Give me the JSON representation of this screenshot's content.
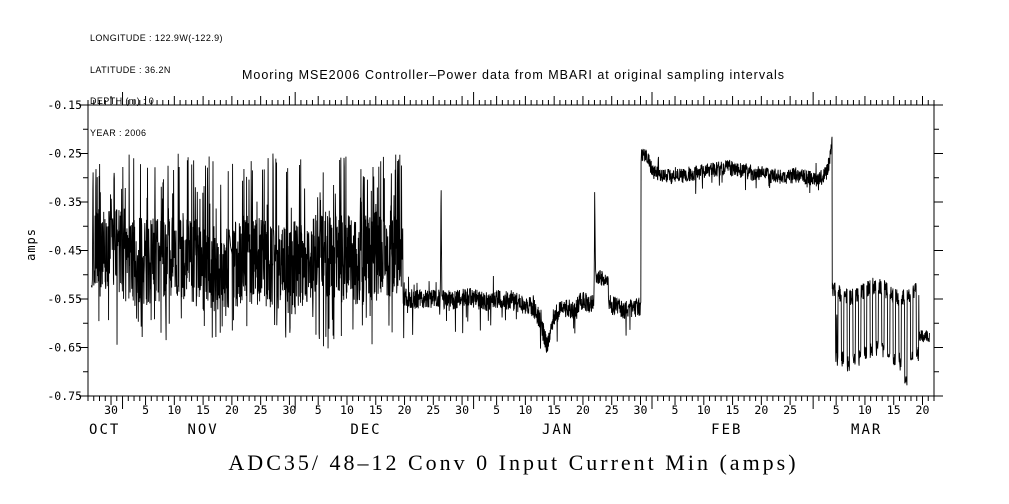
{
  "header": {
    "lines": [
      "LONGITUDE : 122.9W(-122.9)",
      "LATITUDE : 36.2N",
      "DEPTH (m) : 0",
      "YEAR : 2006"
    ]
  },
  "title": "Mooring MSE2006 Controller–Power data from MBARI at original sampling intervals",
  "caption": "ADC35/ 48–12 Conv 0 Input Current Min (amps)",
  "chart_data": {
    "type": "line",
    "title": "Mooring MSE2006 Controller–Power data from MBARI at original sampling intervals",
    "subtitle": "ADC35/ 48–12 Conv 0 Input Current Min (amps)",
    "ylabel": "amps",
    "ylim": [
      -0.75,
      -0.15
    ],
    "line_color": "#000000",
    "background": "#ffffff",
    "grid": false,
    "legend": "none",
    "yticks": [
      {
        "v": -0.75,
        "label": "-0.75"
      },
      {
        "v": -0.65,
        "label": "-0.65"
      },
      {
        "v": -0.55,
        "label": "-0.55"
      },
      {
        "v": -0.45,
        "label": "-0.45"
      },
      {
        "v": -0.35,
        "label": "-0.35"
      },
      {
        "v": -0.25,
        "label": "-0.25"
      },
      {
        "v": -0.15,
        "label": "-0.15"
      }
    ],
    "ytick_minor_step": 0.05,
    "x_axis": {
      "units": "days since Oct 26",
      "domain_days": [
        0,
        147
      ],
      "day_tick_step": 1,
      "month_boundaries": [
        6,
        36,
        67,
        98,
        126
      ],
      "labeled_ticks": [
        {
          "t": 4,
          "label": "30"
        },
        {
          "t": 10,
          "label": "5"
        },
        {
          "t": 15,
          "label": "10"
        },
        {
          "t": 20,
          "label": "15"
        },
        {
          "t": 25,
          "label": "20"
        },
        {
          "t": 30,
          "label": "25"
        },
        {
          "t": 35,
          "label": "30"
        },
        {
          "t": 40,
          "label": "5"
        },
        {
          "t": 45,
          "label": "10"
        },
        {
          "t": 50,
          "label": "15"
        },
        {
          "t": 55,
          "label": "20"
        },
        {
          "t": 60,
          "label": "25"
        },
        {
          "t": 65,
          "label": "30"
        },
        {
          "t": 71,
          "label": "5"
        },
        {
          "t": 76,
          "label": "10"
        },
        {
          "t": 81,
          "label": "15"
        },
        {
          "t": 86,
          "label": "20"
        },
        {
          "t": 91,
          "label": "25"
        },
        {
          "t": 96,
          "label": "30"
        },
        {
          "t": 102,
          "label": "5"
        },
        {
          "t": 107,
          "label": "10"
        },
        {
          "t": 112,
          "label": "15"
        },
        {
          "t": 117,
          "label": "20"
        },
        {
          "t": 122,
          "label": "25"
        },
        {
          "t": 130,
          "label": "5"
        },
        {
          "t": 135,
          "label": "10"
        },
        {
          "t": 140,
          "label": "15"
        },
        {
          "t": 145,
          "label": "20"
        }
      ],
      "month_labels": [
        {
          "t": 2.9,
          "label": "OCT"
        },
        {
          "t": 20,
          "label": "NOV"
        },
        {
          "t": 48.3,
          "label": "DEC"
        },
        {
          "t": 81.6,
          "label": "JAN"
        },
        {
          "t": 111,
          "label": "FEB"
        },
        {
          "t": 135.3,
          "label": "MAR"
        }
      ]
    },
    "seed": 20061026,
    "sample_step_days": 0.042,
    "segments": [
      {
        "kind": "noisy",
        "t0": 0.55,
        "t1": 1.2,
        "anchors": [
          [
            0.55,
            -0.53
          ],
          [
            1.2,
            -0.5
          ]
        ],
        "amp": 0.015,
        "dnprob": 0,
        "dndepth": 0,
        "upprob": 0,
        "updepth": 0
      },
      {
        "kind": "dense",
        "t0": 1.2,
        "t1": 54.75,
        "center": -0.47,
        "half": 0.093,
        "up": [
          -0.365,
          -0.25
        ],
        "upprob": 0.08,
        "upboost": [
          49,
          54.75,
          0.13
        ],
        "dn": [
          -0.63,
          -0.578
        ],
        "dnprob": 0.035,
        "deepband": [
          -0.654,
          -0.632
        ],
        "deepprob": 0.006,
        "gap": {
          "t0": 24.45,
          "t1": 25.1,
          "v0": -0.405,
          "v1": -0.465,
          "endspike": -0.615
        }
      },
      {
        "kind": "noisy",
        "t0": 54.75,
        "t1": 88.1,
        "anchors": [
          [
            54.75,
            -0.548
          ],
          [
            58,
            -0.552
          ],
          [
            61,
            -0.548
          ],
          [
            63,
            -0.553
          ],
          [
            66,
            -0.545
          ],
          [
            69,
            -0.556
          ],
          [
            72,
            -0.55
          ],
          [
            75,
            -0.558
          ],
          [
            77.5,
            -0.568
          ],
          [
            78.8,
            -0.6
          ],
          [
            79.8,
            -0.652
          ],
          [
            80.8,
            -0.6
          ],
          [
            81.5,
            -0.578
          ],
          [
            83,
            -0.568
          ],
          [
            84.5,
            -0.572
          ],
          [
            86,
            -0.55
          ],
          [
            87,
            -0.562
          ],
          [
            88.1,
            -0.556
          ]
        ],
        "amp": 0.02,
        "dnprob": 0.03,
        "dndepth": 0.06,
        "upprob": 0.02,
        "updepth": 0.045
      },
      {
        "kind": "noisy",
        "t0": 88.1,
        "t1": 90.4,
        "anchors": [
          [
            88.1,
            -0.5
          ],
          [
            90.4,
            -0.515
          ]
        ],
        "amp": 0.016,
        "dnprob": 0.02,
        "dndepth": 0.05,
        "upprob": 0.01,
        "updepth": 0.03
      },
      {
        "kind": "noisy",
        "t0": 90.4,
        "t1": 96.1,
        "anchors": [
          [
            90.4,
            -0.56
          ],
          [
            93,
            -0.572
          ],
          [
            96.1,
            -0.565
          ]
        ],
        "amp": 0.02,
        "dnprob": 0.025,
        "dndepth": 0.055,
        "upprob": 0.012,
        "updepth": 0.04
      },
      {
        "kind": "noisy",
        "t0": 96.1,
        "t1": 129.32,
        "anchors": [
          [
            96.1,
            -0.254
          ],
          [
            97.2,
            -0.257
          ],
          [
            98.2,
            -0.288
          ],
          [
            100,
            -0.298
          ],
          [
            103,
            -0.296
          ],
          [
            106,
            -0.289
          ],
          [
            109,
            -0.282
          ],
          [
            111,
            -0.278
          ],
          [
            113,
            -0.284
          ],
          [
            116,
            -0.29
          ],
          [
            119,
            -0.296
          ],
          [
            121,
            -0.301
          ],
          [
            123,
            -0.294
          ],
          [
            125,
            -0.299
          ],
          [
            127,
            -0.303
          ],
          [
            128.3,
            -0.292
          ],
          [
            128.9,
            -0.262
          ],
          [
            129.32,
            -0.218
          ]
        ],
        "amp": 0.016,
        "dnprob": 0.025,
        "dndepth": 0.04,
        "upprob": 0.01,
        "updepth": 0.025
      },
      {
        "kind": "osc",
        "t0": 129.32,
        "t1": 144.4,
        "hi": -0.535,
        "hiamp": 0.018,
        "lo": -0.653,
        "loamp": 0.028,
        "duty": 0.58,
        "deep": {
          "t0": 141.3,
          "t1": 142.9,
          "extra": 0.04
        }
      },
      {
        "kind": "blob",
        "t0": 144.4,
        "t1": 146.22,
        "mean": -0.627,
        "amp": 0.013
      }
    ],
    "spikes": [
      {
        "t": 0.87,
        "peak": -0.172,
        "hw": 0.12
      },
      {
        "t": 61.35,
        "peak": -0.228,
        "hw": 0.14
      },
      {
        "t": 88.05,
        "peak": -0.243,
        "hw": 0.14
      },
      {
        "t": 99.1,
        "peak": -0.222,
        "hw": 0.07
      },
      {
        "t": 130.1,
        "peak": -0.475,
        "hw": 0.06
      }
    ],
    "downspikes": [
      {
        "t": 54.85,
        "v": -0.645
      },
      {
        "t": 65.1,
        "v": -0.63
      },
      {
        "t": 84.6,
        "v": -0.64
      },
      {
        "t": 93.5,
        "v": -0.635
      }
    ]
  }
}
